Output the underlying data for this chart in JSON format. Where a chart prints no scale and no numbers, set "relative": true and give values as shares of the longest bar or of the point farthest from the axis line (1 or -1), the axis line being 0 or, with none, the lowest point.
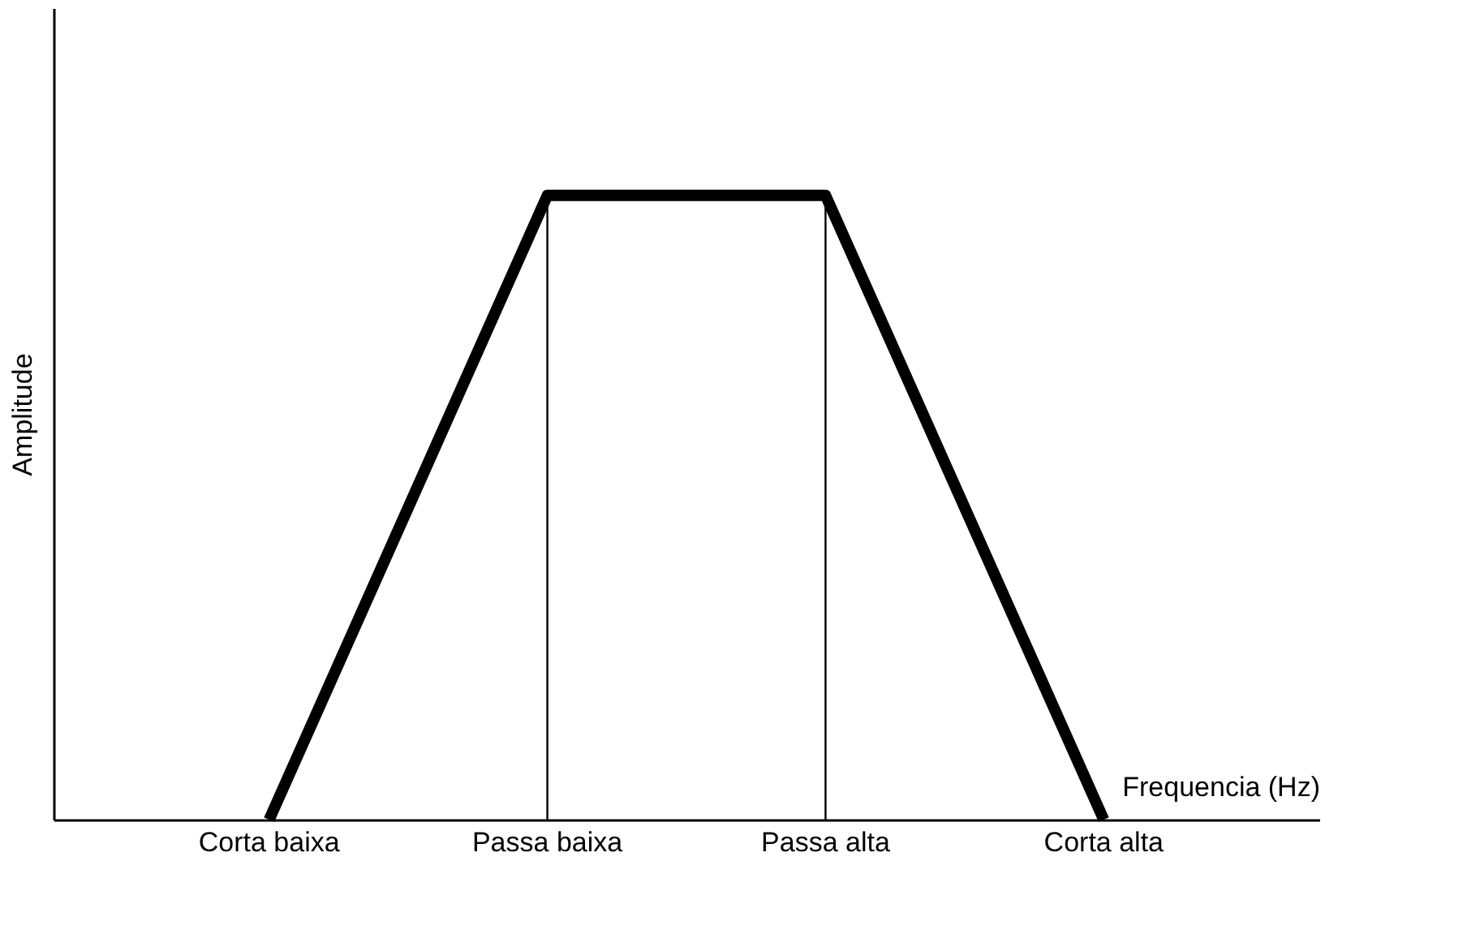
{
  "chart_data": {
    "type": "line",
    "relative": true,
    "xlabel": "Frequencia (Hz)",
    "ylabel": "Amplitude",
    "categories": [
      "Corta baixa",
      "Passa baixa",
      "Passa alta",
      "Corta alta"
    ],
    "series": [
      {
        "color": "#000000",
        "values": [
          0,
          1,
          1,
          0
        ]
      }
    ],
    "ref_lines": [
      {
        "axis": "x",
        "value": "Passa baixa",
        "color": "#000000"
      },
      {
        "axis": "x",
        "value": "Passa alta",
        "color": "#000000"
      }
    ],
    "grid": false,
    "marker": "none",
    "line_style": "solid"
  }
}
